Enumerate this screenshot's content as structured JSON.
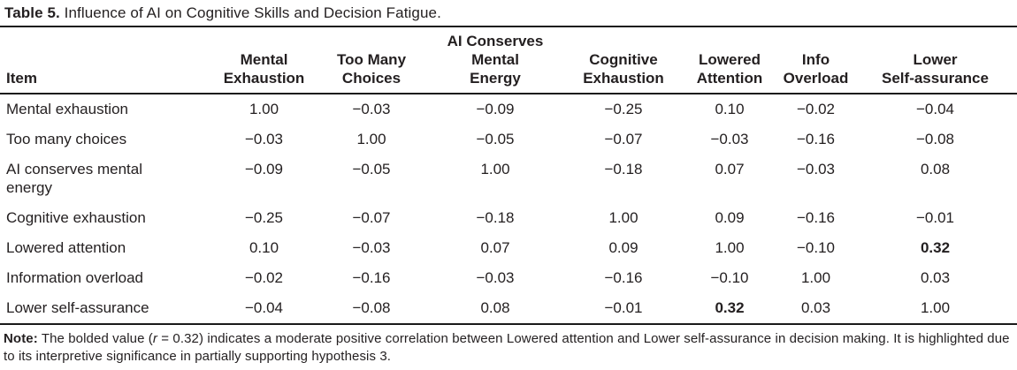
{
  "caption": {
    "label": "Table 5.",
    "text": "Influence of AI on Cognitive Skills and Decision Fatigue."
  },
  "table": {
    "columns": [
      {
        "id": "item",
        "lines": [
          "Item"
        ]
      },
      {
        "id": "mental-exhaustion",
        "lines": [
          "Mental",
          "Exhaustion"
        ]
      },
      {
        "id": "too-many-choices",
        "lines": [
          "Too Many",
          "Choices"
        ]
      },
      {
        "id": "ai-conserves-mental-energy",
        "lines": [
          "AI Conserves",
          "Mental",
          "Energy"
        ]
      },
      {
        "id": "cognitive-exhaustion",
        "lines": [
          "Cognitive",
          "Exhaustion"
        ]
      },
      {
        "id": "lowered-attention",
        "lines": [
          "Lowered",
          "Attention"
        ]
      },
      {
        "id": "info-overload",
        "lines": [
          "Info",
          "Overload"
        ]
      },
      {
        "id": "lower-self-assurance",
        "lines": [
          "Lower",
          "Self-assurance"
        ]
      }
    ],
    "rows": [
      {
        "item": "Mental exhaustion",
        "values": [
          "1.00",
          "−0.03",
          "−0.09",
          "−0.25",
          "0.10",
          "−0.02",
          "−0.04"
        ],
        "bold": []
      },
      {
        "item": "Too many choices",
        "values": [
          "−0.03",
          "1.00",
          "−0.05",
          "−0.07",
          "−0.03",
          "−0.16",
          "−0.08"
        ],
        "bold": []
      },
      {
        "item": "AI conserves mental energy",
        "values": [
          "−0.09",
          "−0.05",
          "1.00",
          "−0.18",
          "0.07",
          "−0.03",
          "0.08"
        ],
        "bold": []
      },
      {
        "item": "Cognitive exhaustion",
        "values": [
          "−0.25",
          "−0.07",
          "−0.18",
          "1.00",
          "0.09",
          "−0.16",
          "−0.01"
        ],
        "bold": []
      },
      {
        "item": "Lowered attention",
        "values": [
          "0.10",
          "−0.03",
          "0.07",
          "0.09",
          "1.00",
          "−0.10",
          "0.32"
        ],
        "bold": [
          6
        ]
      },
      {
        "item": "Information overload",
        "values": [
          "−0.02",
          "−0.16",
          "−0.03",
          "−0.16",
          "−0.10",
          "1.00",
          "0.03"
        ],
        "bold": []
      },
      {
        "item": "Lower self-assurance",
        "values": [
          "−0.04",
          "−0.08",
          "0.08",
          "−0.01",
          "0.32",
          "0.03",
          "1.00"
        ],
        "bold": [
          4
        ]
      }
    ]
  },
  "note": {
    "label": "Note:",
    "pre": "The bolded value (",
    "r": "r",
    "post": " = 0.32) indicates a moderate positive correlation between Lowered attention and Lower self-assurance in decision making. It is highlighted due to its interpretive significance in partially supporting hypothesis 3."
  },
  "colors": {
    "text": "#231f20",
    "rule": "#1a1a1a",
    "background": "#ffffff"
  }
}
